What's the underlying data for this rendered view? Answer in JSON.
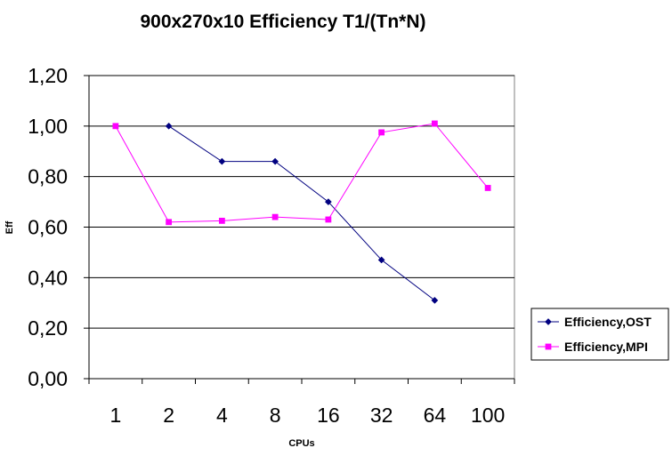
{
  "chart_data": {
    "type": "line",
    "title": "900x270x10 Efficiency T1/(Tn*N)",
    "xlabel": "CPUs",
    "ylabel": "Eff",
    "categories": [
      "1",
      "2",
      "4",
      "8",
      "16",
      "32",
      "64",
      "100"
    ],
    "ylim": [
      0,
      1.2
    ],
    "yticks": [
      "0,00",
      "0,20",
      "0,40",
      "0,60",
      "0,80",
      "1,00",
      "1,20"
    ],
    "grid": true,
    "legend_position": "right",
    "series": [
      {
        "name": "Efficiency,OST",
        "color": "#000080",
        "marker": "diamond",
        "values": [
          null,
          1.0,
          0.86,
          0.86,
          0.7,
          0.47,
          0.31,
          null
        ]
      },
      {
        "name": "Efficiency,MPI",
        "color": "#ff00ff",
        "marker": "square",
        "values": [
          1.0,
          0.62,
          0.625,
          0.64,
          0.63,
          0.975,
          1.01,
          0.755
        ]
      }
    ]
  }
}
